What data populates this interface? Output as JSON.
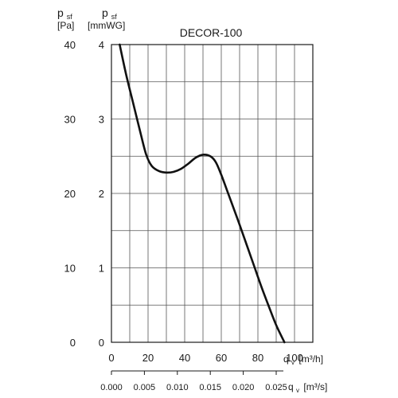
{
  "chart_data": {
    "type": "line",
    "title": "DECOR-100",
    "y_left_unit": {
      "symbol": "p",
      "subscript": "sf",
      "unit": "[Pa]"
    },
    "y_right_unit": {
      "symbol": "p",
      "subscript": "sf",
      "unit": "[mmWG]"
    },
    "x_unit_top": {
      "symbol": "q",
      "subscript": "v",
      "unit": "[m³/h]"
    },
    "x_unit_bottom": {
      "symbol": "q",
      "subscript": "v",
      "unit": "[m³/s]"
    },
    "xlim": [
      0,
      110
    ],
    "ylim_pa": [
      0,
      40
    ],
    "ylim_mmwg": [
      0,
      4
    ],
    "x_ticks": [
      "0",
      "20",
      "40",
      "60",
      "80",
      "100"
    ],
    "x_tick_values": [
      0,
      20,
      40,
      60,
      80,
      100
    ],
    "x2_ticks": [
      "0.000",
      "0.005",
      "0.010",
      "0.015",
      "0.020",
      "0.025"
    ],
    "x2_tick_values": [
      0.0,
      0.005,
      0.01,
      0.015,
      0.02,
      0.025
    ],
    "y_pa_ticks": [
      "0",
      "10",
      "20",
      "30",
      "40"
    ],
    "y_pa_tick_values": [
      0,
      10,
      20,
      30,
      40
    ],
    "y_mmwg_ticks": [
      "0",
      "1",
      "2",
      "3",
      "4"
    ],
    "y_mmwg_tick_values": [
      0,
      1,
      2,
      3,
      4
    ],
    "grid": true,
    "series": [
      {
        "x": [
          4.5,
          8,
          12,
          16,
          19,
          22,
          26,
          30,
          34,
          38,
          42,
          46,
          50,
          54,
          57,
          60,
          63,
          66,
          70,
          74,
          78,
          82,
          86,
          90,
          94.5
        ],
        "y": [
          40,
          36,
          32,
          28,
          25.2,
          23.7,
          23.0,
          22.8,
          22.9,
          23.3,
          24.0,
          24.8,
          25.2,
          25.0,
          24.2,
          22.5,
          20.5,
          18.5,
          15.8,
          13.0,
          10.2,
          7.4,
          4.8,
          2.3,
          0
        ]
      }
    ]
  }
}
